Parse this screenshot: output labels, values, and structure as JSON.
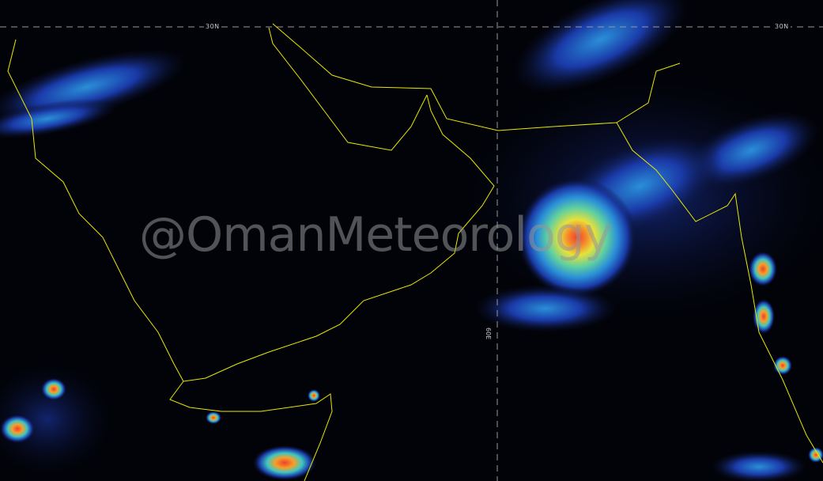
{
  "map": {
    "type": "infrared satellite image",
    "gridlines": {
      "latitude_label": "30N",
      "longitude_label": "60E"
    },
    "watermark": "@OmanMeteorology",
    "colors": {
      "coastline": "#e8e800",
      "gridline": "#9a9a9a",
      "cloud_cold": "#1f3fbf",
      "cloud_mid": "#2fc9d8",
      "cloud_colder": "#e8e53a",
      "cloud_coldest": "#f0502a"
    }
  }
}
